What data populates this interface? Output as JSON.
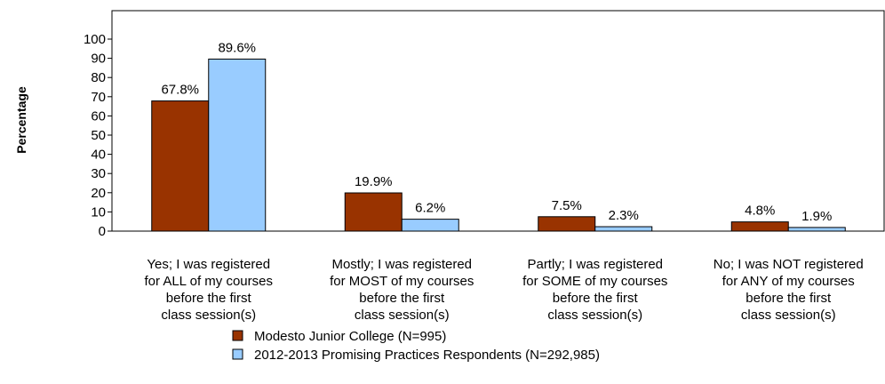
{
  "chart_data": {
    "type": "bar",
    "ylabel": "Percentage",
    "xlabel": "",
    "ylim": [
      0,
      100
    ],
    "yticks": [
      "0",
      "10",
      "20",
      "30",
      "40",
      "50",
      "60",
      "70",
      "80",
      "90",
      "100"
    ],
    "categories": [
      [
        "Yes; I was registered",
        "for ALL of my courses",
        "before the first",
        "class session(s)"
      ],
      [
        "Mostly; I was registered",
        "for MOST of my courses",
        "before the first",
        "class session(s)"
      ],
      [
        "Partly; I was registered",
        "for SOME of my courses",
        "before the first",
        "class session(s)"
      ],
      [
        "No; I was NOT registered",
        "for ANY of my courses",
        "before the first",
        "class session(s)"
      ]
    ],
    "series": [
      {
        "name": "Modesto Junior College (N=995)",
        "values": [
          67.8,
          19.9,
          7.5,
          4.8
        ],
        "labels": [
          "67.8%",
          "19.9%",
          "7.5%",
          "4.8%"
        ],
        "color": "#993300"
      },
      {
        "name": "2012-2013 Promising Practices Respondents (N=292,985)",
        "values": [
          89.6,
          6.2,
          2.3,
          1.9
        ],
        "labels": [
          "89.6%",
          "6.2%",
          "2.3%",
          "1.9%"
        ],
        "color": "#99ccff"
      }
    ],
    "grid": false,
    "legend_position": "bottom"
  }
}
